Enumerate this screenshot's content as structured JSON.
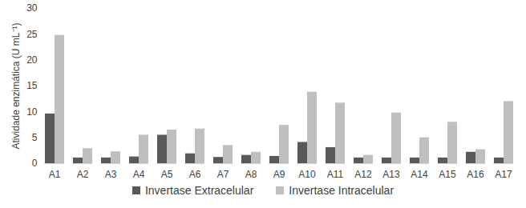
{
  "chart_data": {
    "type": "bar",
    "ylabel": "Atividade enzimática (U mL⁻¹)",
    "categories": [
      "A1",
      "A2",
      "A3",
      "A4",
      "A5",
      "A6",
      "A7",
      "A8",
      "A9",
      "A10",
      "A11",
      "A12",
      "A13",
      "A14",
      "A15",
      "A16",
      "A17"
    ],
    "series": [
      {
        "name": "Invertase Extracelular",
        "color": "#595959",
        "values": [
          9.6,
          1.1,
          1.1,
          1.3,
          5.5,
          1.9,
          1.2,
          1.6,
          1.4,
          4.1,
          3.1,
          1.1,
          1.1,
          1.1,
          1.1,
          2.2,
          1.1
        ]
      },
      {
        "name": "Invertase Intracelular",
        "color": "#bfbfbf",
        "values": [
          24.8,
          2.9,
          2.3,
          5.5,
          6.5,
          6.7,
          3.5,
          2.2,
          7.4,
          13.8,
          11.7,
          1.6,
          9.8,
          5.0,
          8.0,
          2.7,
          12.0
        ]
      }
    ],
    "ylim": [
      0,
      30
    ],
    "yticks": [
      0,
      5,
      10,
      15,
      20,
      25,
      30
    ],
    "grid": false,
    "legend": "bottom"
  }
}
